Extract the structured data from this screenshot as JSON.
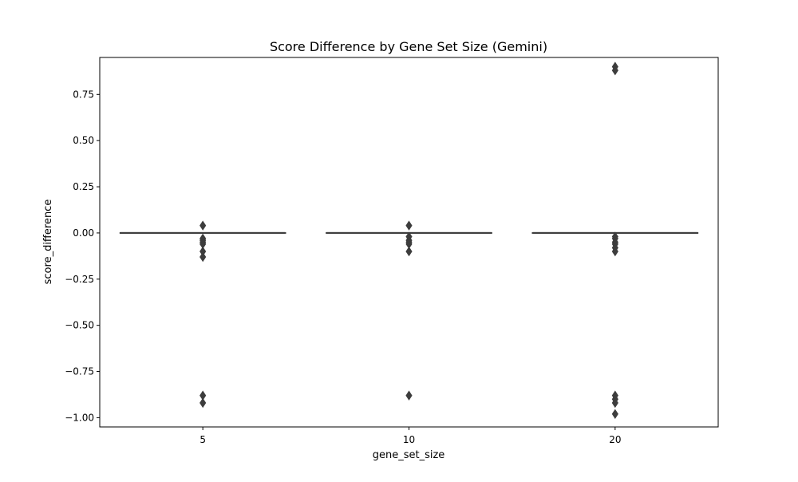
{
  "chart_data": {
    "type": "box",
    "title": "Score Difference by Gene Set Size (Gemini)",
    "xlabel": "gene_set_size",
    "ylabel": "score_difference",
    "categories": [
      "5",
      "10",
      "20"
    ],
    "ylim": [
      -1.05,
      0.95
    ],
    "yticks": [
      0.75,
      0.5,
      0.25,
      0.0,
      -0.25,
      -0.5,
      -0.75,
      -1.0
    ],
    "ytick_labels": [
      "0.75",
      "0.50",
      "0.25",
      "0.00",
      "−0.25",
      "−0.50",
      "−0.75",
      "−1.00"
    ],
    "grid": false,
    "boxes": [
      {
        "category": "5",
        "q1": 0.0,
        "median": 0.0,
        "q3": 0.0,
        "whisker_low": 0.0,
        "whisker_high": 0.0,
        "outliers": [
          0.04,
          -0.03,
          -0.04,
          -0.05,
          -0.06,
          -0.1,
          -0.13,
          -0.88,
          -0.92
        ]
      },
      {
        "category": "10",
        "q1": 0.0,
        "median": 0.0,
        "q3": 0.0,
        "whisker_low": 0.0,
        "whisker_high": 0.0,
        "outliers": [
          0.04,
          -0.02,
          -0.04,
          -0.05,
          -0.06,
          -0.1,
          -0.88
        ]
      },
      {
        "category": "20",
        "q1": 0.0,
        "median": 0.0,
        "q3": 0.0,
        "whisker_low": 0.0,
        "whisker_high": 0.0,
        "outliers": [
          0.9,
          0.88,
          -0.02,
          -0.03,
          -0.05,
          -0.06,
          -0.08,
          -0.1,
          -0.88,
          -0.9,
          -0.92,
          -0.98
        ]
      }
    ],
    "colors": {
      "box": "#3d3d3d",
      "outlier": "#3d3d3d",
      "axis": "#000000"
    }
  }
}
